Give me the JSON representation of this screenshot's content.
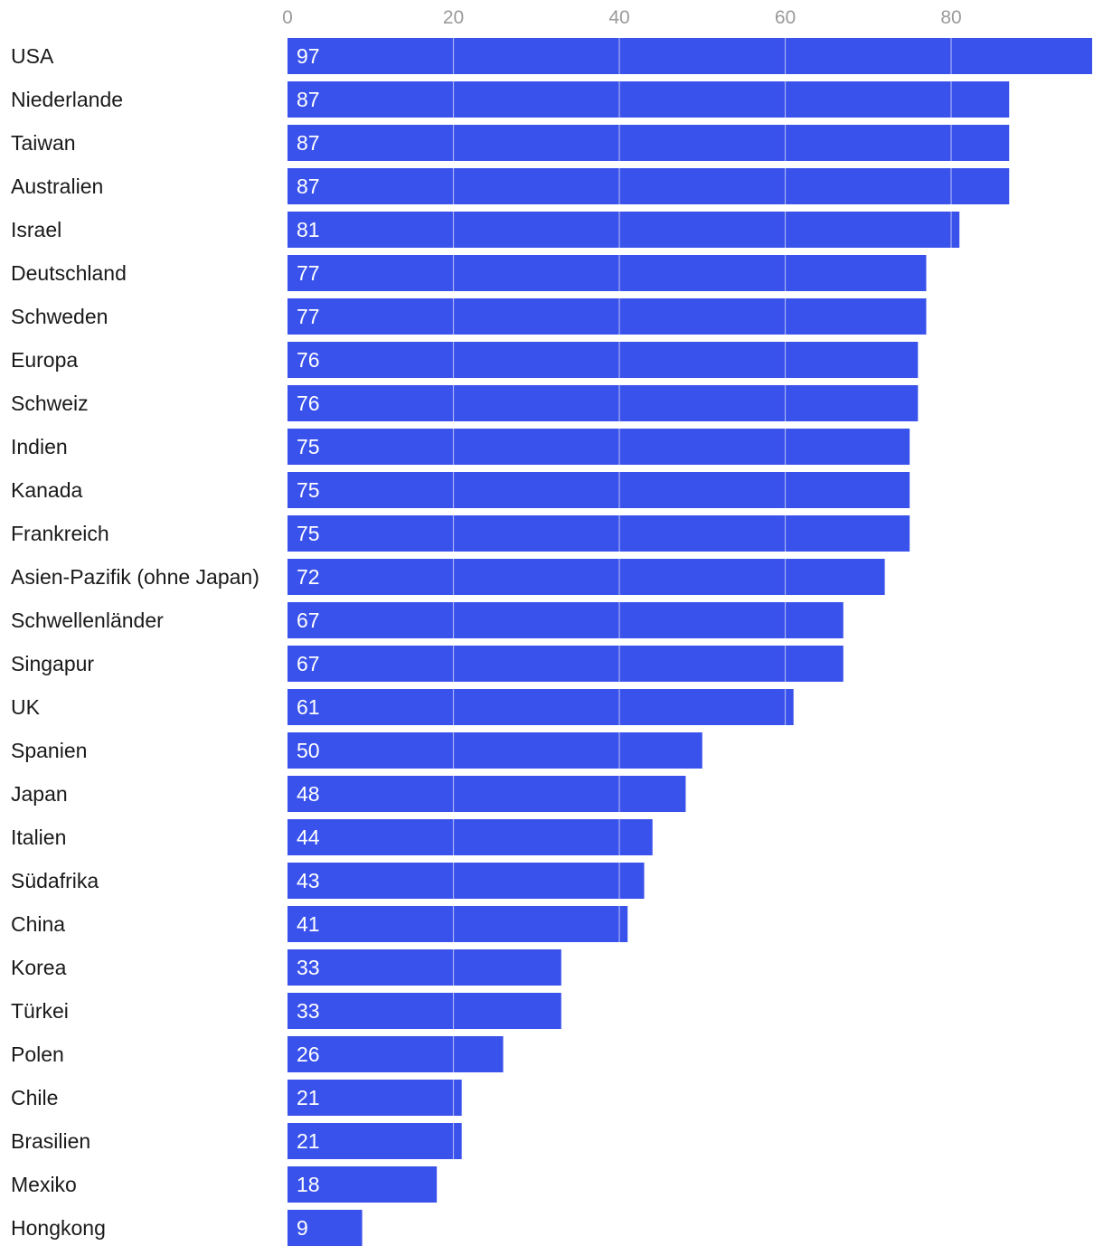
{
  "chart_data": {
    "type": "bar",
    "orientation": "horizontal",
    "bar_color": "#3a52ec",
    "tick_color": "#9a9a9a",
    "label_color": "#1a1a1a",
    "value_label_color": "#ffffff",
    "xlim": [
      0,
      97
    ],
    "xticks": [
      0,
      20,
      40,
      60,
      80
    ],
    "categories": [
      "USA",
      "Niederlande",
      "Taiwan",
      "Australien",
      "Israel",
      "Deutschland",
      "Schweden",
      "Europa",
      "Schweiz",
      "Indien",
      "Kanada",
      "Frankreich",
      "Asien-Pazifik (ohne Japan)",
      "Schwellenländer",
      "Singapur",
      "UK",
      "Spanien",
      "Japan",
      "Italien",
      "Südafrika",
      "China",
      "Korea",
      "Türkei",
      "Polen",
      "Chile",
      "Brasilien",
      "Mexiko",
      "Hongkong"
    ],
    "values": [
      97,
      87,
      87,
      87,
      81,
      77,
      77,
      76,
      76,
      75,
      75,
      75,
      72,
      67,
      67,
      61,
      50,
      48,
      44,
      43,
      41,
      33,
      33,
      26,
      21,
      21,
      18,
      9
    ],
    "grid": true,
    "title": "",
    "xlabel": "",
    "ylabel": ""
  }
}
